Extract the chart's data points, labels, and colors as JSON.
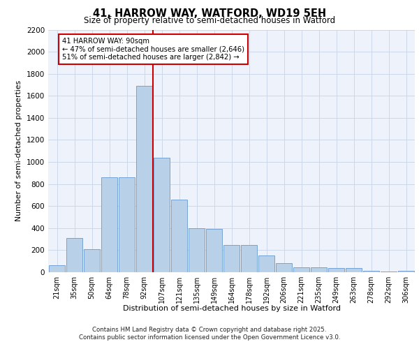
{
  "title1": "41, HARROW WAY, WATFORD, WD19 5EH",
  "title2": "Size of property relative to semi-detached houses in Watford",
  "xlabel": "Distribution of semi-detached houses by size in Watford",
  "ylabel": "Number of semi-detached properties",
  "categories": [
    "21sqm",
    "35sqm",
    "50sqm",
    "64sqm",
    "78sqm",
    "92sqm",
    "107sqm",
    "121sqm",
    "135sqm",
    "149sqm",
    "164sqm",
    "178sqm",
    "192sqm",
    "206sqm",
    "221sqm",
    "235sqm",
    "249sqm",
    "263sqm",
    "278sqm",
    "292sqm",
    "306sqm"
  ],
  "values": [
    65,
    310,
    210,
    860,
    860,
    1690,
    1040,
    660,
    400,
    395,
    250,
    250,
    150,
    80,
    45,
    45,
    35,
    35,
    10,
    5,
    10
  ],
  "bar_color": "#b8d0e8",
  "bar_edge_color": "#6699cc",
  "vline_x_idx": 5,
  "vline_color": "#cc0000",
  "annotation_title": "41 HARROW WAY: 90sqm",
  "annotation_line1": "← 47% of semi-detached houses are smaller (2,646)",
  "annotation_line2": "51% of semi-detached houses are larger (2,842) →",
  "annotation_box_color": "#cc0000",
  "ylim": [
    0,
    2200
  ],
  "yticks": [
    0,
    200,
    400,
    600,
    800,
    1000,
    1200,
    1400,
    1600,
    1800,
    2000,
    2200
  ],
  "footer1": "Contains HM Land Registry data © Crown copyright and database right 2025.",
  "footer2": "Contains public sector information licensed under the Open Government Licence v3.0.",
  "bg_color": "#eef2fb",
  "grid_color": "#c8d4e8"
}
